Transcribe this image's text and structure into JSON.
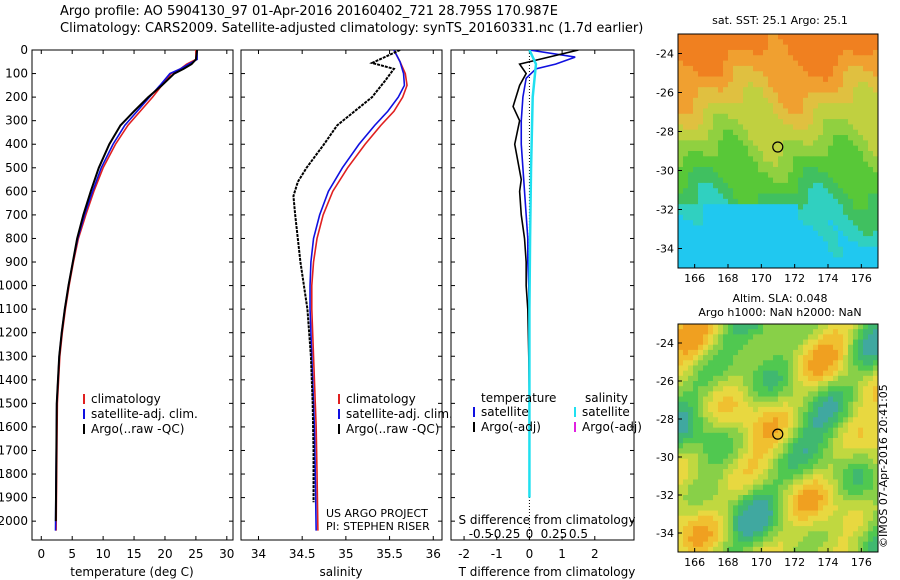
{
  "header": {
    "title_line1": "Argo profile: AO 5904130_97 01-Apr-2016 20160402_721 28.795S 170.987E",
    "title_line2": "Climatology: CARS2009. Satellite-adjusted climatology: synTS_20160331.nc (1.7d earlier)"
  },
  "map_sst": {
    "title": "sat. SST: 25.1 Argo: 25.1"
  },
  "map_sla": {
    "title1": "Altim. SLA: 0.048",
    "title2": "Argo h1000: NaN h2000: NaN"
  },
  "stamp": "©IMOS 07-Apr-2016 20:41:05",
  "project_note": {
    "line1": "US ARGO PROJECT",
    "line2": "PI: STEPHEN RISER"
  },
  "colors": {
    "climatology": "#e02020",
    "satellite": "#1010e0",
    "argo": "#000000",
    "satellite_sal": "#20e0f0",
    "argo_adj_sal": "#e020e0"
  },
  "chart_data": [
    {
      "type": "line",
      "xlabel": "temperature (deg C)",
      "ylabel": "",
      "xlim": [
        -1.5,
        31
      ],
      "ylim": [
        2080,
        0
      ],
      "x_ticks": [
        0,
        5,
        10,
        15,
        20,
        25,
        30
      ],
      "y_ticks": [
        0,
        100,
        200,
        300,
        400,
        500,
        600,
        700,
        800,
        900,
        1000,
        1100,
        1200,
        1300,
        1400,
        1500,
        1600,
        1700,
        1800,
        1900,
        2000
      ],
      "legend": [
        "climatology",
        "satellite-adj. clim.",
        "Argo(..raw -QC)"
      ],
      "legend_position": "lower-middle",
      "series": [
        {
          "name": "climatology",
          "x": [
            25.0,
            25.0,
            23.5,
            22.5,
            21.0,
            19.5,
            18.0,
            16.0,
            14.0,
            12.0,
            10.0,
            8.5,
            7.2,
            6.0,
            5.2,
            4.5,
            3.9,
            3.4,
            3.0,
            2.8,
            2.6,
            2.4
          ],
          "y": [
            0,
            40,
            60,
            80,
            100,
            150,
            200,
            260,
            320,
            400,
            500,
            600,
            700,
            800,
            900,
            1000,
            1100,
            1200,
            1300,
            1400,
            1500,
            2040
          ]
        },
        {
          "name": "satellite-adj. clim.",
          "x": [
            25.2,
            25.2,
            23.8,
            22.5,
            20.8,
            19.2,
            17.5,
            15.5,
            13.5,
            11.6,
            9.7,
            8.3,
            7.0,
            5.9,
            5.1,
            4.4,
            3.8,
            3.3,
            2.9,
            2.7,
            2.5,
            2.3
          ],
          "y": [
            0,
            40,
            60,
            80,
            100,
            150,
            200,
            260,
            320,
            400,
            500,
            600,
            700,
            800,
            900,
            1000,
            1100,
            1200,
            1300,
            1400,
            1500,
            2040
          ]
        },
        {
          "name": "Argo(..raw -QC)",
          "x": [
            25.2,
            25.0,
            24.3,
            23.0,
            21.5,
            19.5,
            17.3,
            15.0,
            12.8,
            11.0,
            9.3,
            8.0,
            6.8,
            5.8,
            5.1,
            4.4,
            3.8,
            3.3,
            2.9,
            2.7,
            2.5,
            2.35
          ],
          "y": [
            0,
            40,
            60,
            80,
            100,
            150,
            200,
            260,
            320,
            400,
            500,
            600,
            700,
            800,
            900,
            1000,
            1100,
            1200,
            1300,
            1400,
            1500,
            2000
          ]
        }
      ]
    },
    {
      "type": "line",
      "xlabel": "salinity",
      "ylabel": "",
      "xlim": [
        33.8,
        36.1
      ],
      "ylim": [
        2080,
        0
      ],
      "x_ticks": [
        34,
        34.5,
        35,
        35.5,
        36
      ],
      "legend": [
        "climatology",
        "satellite-adj. clim.",
        "Argo(..raw -QC)"
      ],
      "legend_position": "lower-middle",
      "series": [
        {
          "name": "climatology",
          "x": [
            35.55,
            35.62,
            35.68,
            35.7,
            35.65,
            35.55,
            35.4,
            35.22,
            35.02,
            34.85,
            34.74,
            34.67,
            34.63,
            34.61,
            34.61,
            34.62,
            34.63,
            34.64,
            34.65,
            34.66,
            34.67,
            34.68
          ],
          "y": [
            0,
            50,
            100,
            150,
            200,
            260,
            320,
            400,
            500,
            600,
            700,
            800,
            900,
            1000,
            1100,
            1200,
            1300,
            1400,
            1500,
            1600,
            1800,
            2040
          ]
        },
        {
          "name": "satellite-adj. clim.",
          "x": [
            35.55,
            35.62,
            35.66,
            35.67,
            35.6,
            35.48,
            35.33,
            35.15,
            34.96,
            34.8,
            34.7,
            34.63,
            34.6,
            34.59,
            34.59,
            34.6,
            34.61,
            34.62,
            34.63,
            34.64,
            34.65,
            34.66
          ],
          "y": [
            0,
            50,
            100,
            150,
            200,
            260,
            320,
            400,
            500,
            600,
            700,
            800,
            900,
            1000,
            1100,
            1200,
            1300,
            1400,
            1500,
            1600,
            1800,
            2040
          ]
        },
        {
          "name": "Argo(..raw -QC)",
          "x": [
            35.62,
            35.3,
            35.55,
            35.45,
            35.3,
            35.1,
            34.9,
            34.75,
            34.55,
            34.45,
            34.4,
            34.42,
            34.45,
            34.48,
            34.52,
            34.56,
            34.58,
            34.6,
            34.61,
            34.62,
            34.63,
            34.63
          ],
          "y": [
            0,
            55,
            80,
            130,
            200,
            260,
            320,
            400,
            500,
            560,
            620,
            700,
            800,
            900,
            1000,
            1100,
            1200,
            1300,
            1400,
            1500,
            1700,
            1920
          ]
        }
      ]
    },
    {
      "type": "line",
      "xlabel": "T difference from climatology",
      "ylabel": "",
      "top_xlabel": "S difference from climatology",
      "xlim": [
        -2.4,
        3.2
      ],
      "ylim": [
        2080,
        0
      ],
      "x_ticks": [
        -2,
        -1,
        0,
        1,
        2
      ],
      "top_ticks": [
        "-0.5",
        "-0.25",
        "0",
        "0.25",
        "0.5"
      ],
      "legend_headers": [
        "temperature",
        "salinity"
      ],
      "legend": [
        "satellite",
        "Argo(-adj)",
        "satellite",
        "Argo(-adj)"
      ],
      "legend_position": "lower-middle",
      "series": [
        {
          "name": "temperature satellite",
          "x": [
            0.0,
            1.4,
            0.8,
            0.2,
            -0.1,
            -0.2,
            -0.25,
            -0.25,
            -0.2,
            -0.15,
            -0.1,
            -0.05,
            -0.05,
            -0.02,
            0.0,
            0.0,
            0.0,
            0.0
          ],
          "y": [
            0,
            30,
            60,
            80,
            120,
            200,
            300,
            400,
            500,
            600,
            700,
            800,
            900,
            1000,
            1200,
            1400,
            1500,
            1600
          ]
        },
        {
          "name": "temperature Argo(-adj)",
          "x": [
            1.5,
            -0.3,
            -0.1,
            -0.3,
            -0.5,
            -0.3,
            -0.45,
            -0.25,
            -0.3,
            -0.25,
            -0.15,
            -0.1,
            -0.1,
            -0.05,
            -0.02,
            0.0,
            0.0,
            0.0
          ],
          "y": [
            0,
            60,
            100,
            150,
            240,
            300,
            400,
            550,
            600,
            700,
            800,
            900,
            1000,
            1100,
            1300,
            1500,
            1600,
            1700
          ]
        },
        {
          "name": "salinity satellite",
          "x": [
            0.0,
            0.2,
            0.1,
            0.05,
            0.02,
            0.0,
            0.0,
            0.0
          ],
          "y": [
            0,
            60,
            200,
            500,
            800,
            1100,
            1500,
            1900
          ]
        }
      ]
    },
    {
      "type": "heatmap",
      "title": "sat. SST: 25.1 Argo: 25.1",
      "xlim": [
        165,
        177
      ],
      "ylim": [
        -35,
        -23
      ],
      "x_ticks": [
        166,
        168,
        170,
        172,
        174,
        176
      ],
      "y_ticks": [
        -24,
        -26,
        -28,
        -30,
        -32,
        -34
      ],
      "marker": {
        "lon": 170.987,
        "lat": -28.795
      }
    },
    {
      "type": "heatmap",
      "title": "Altim. SLA: 0.048",
      "xlim": [
        165,
        177
      ],
      "ylim": [
        -35,
        -23
      ],
      "x_ticks": [
        166,
        168,
        170,
        172,
        174,
        176
      ],
      "y_ticks": [
        -24,
        -26,
        -28,
        -30,
        -32,
        -34
      ],
      "marker": {
        "lon": 170.987,
        "lat": -28.795
      }
    }
  ]
}
